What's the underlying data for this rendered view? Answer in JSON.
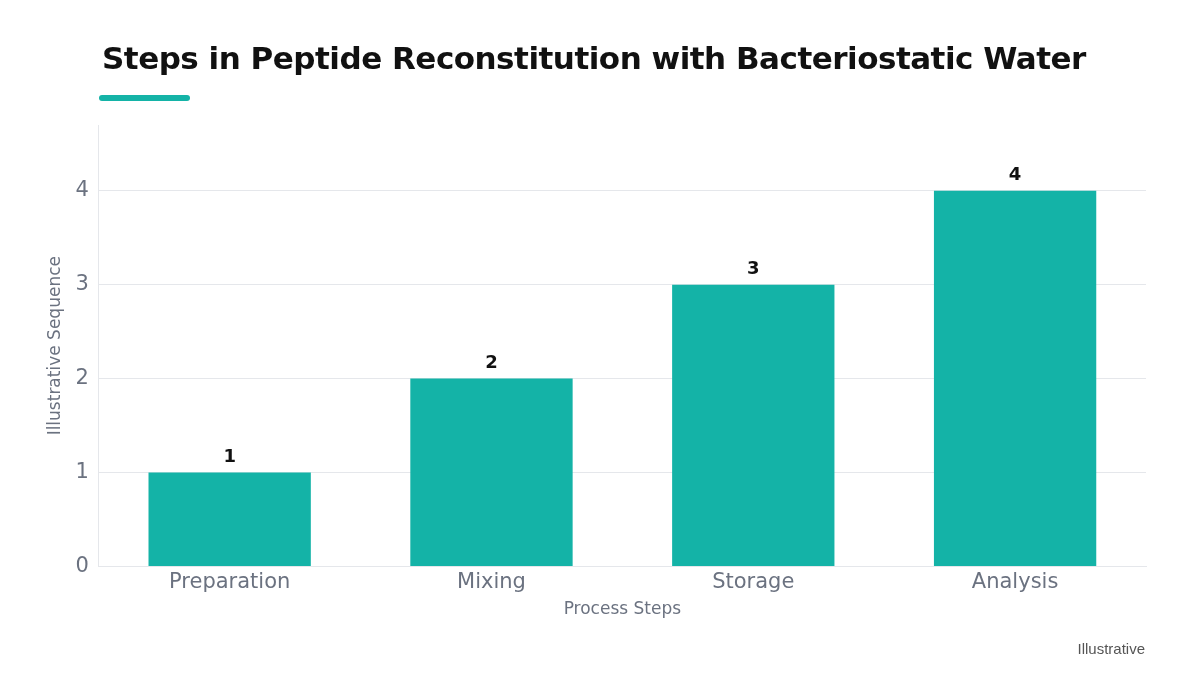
{
  "chart_data": {
    "type": "bar",
    "title": "Steps in Peptide Reconstitution with Bacteriostatic Water",
    "xlabel": "Process Steps",
    "ylabel": "Illustrative Sequence",
    "categories": [
      "Preparation",
      "Mixing",
      "Storage",
      "Analysis"
    ],
    "values": [
      1,
      2,
      3,
      4
    ],
    "color": "#14b3a7",
    "ylim": [
      0,
      4.7
    ],
    "yticks": [
      0,
      1,
      2,
      3,
      4
    ],
    "grid": "y",
    "data_labels": true,
    "annotations": [
      "Illustrative"
    ]
  }
}
